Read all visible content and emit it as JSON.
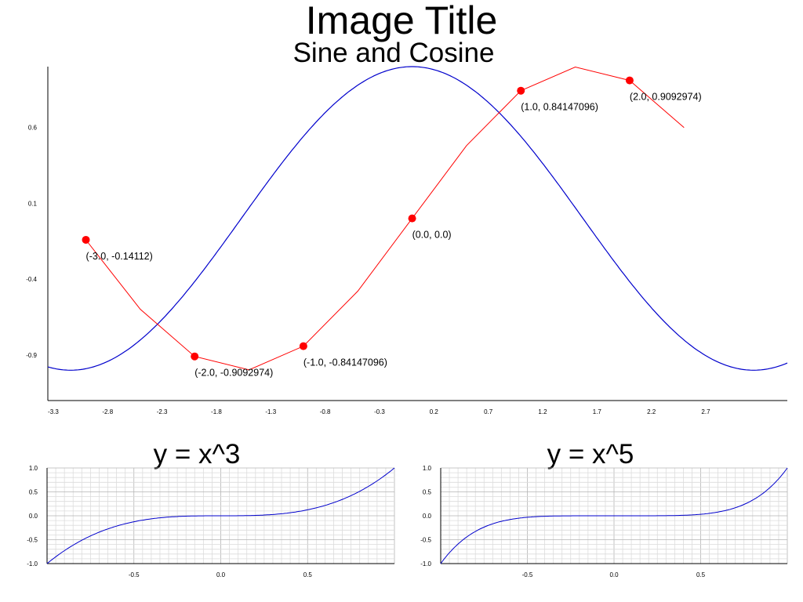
{
  "page": {
    "title": "Image Title"
  },
  "chart_data": [
    {
      "type": "line",
      "title": "Sine and Cosine",
      "xlabel": "",
      "ylabel": "",
      "xlim": [
        -3.35,
        3.45
      ],
      "ylim": [
        -1.2,
        1.0
      ],
      "grid": false,
      "x_ticks": [
        "-3.3",
        "-2.8",
        "-2.3",
        "-1.8",
        "-1.3",
        "-0.8",
        "-0.3",
        "0.2",
        "0.7",
        "1.2",
        "1.7",
        "2.2",
        "2.7"
      ],
      "y_ticks": [
        "0.6",
        "0.1",
        "-0.4",
        "-0.9"
      ],
      "series": [
        {
          "function": "cos(x)",
          "color": "#0000cc",
          "x": [
            -3.35,
            -3.25,
            -3.14,
            -3.0,
            -2.75,
            -2.5,
            -2.25,
            -2.0,
            -1.75,
            -1.5,
            -1.25,
            -1.0,
            -0.75,
            -0.5,
            -0.25,
            0.0,
            0.25,
            0.5,
            0.75,
            1.0,
            1.25,
            1.5,
            1.75,
            2.0,
            2.25,
            2.5,
            2.75,
            3.0,
            3.14,
            3.25,
            3.45
          ],
          "y": [
            -0.98,
            -0.99,
            -1.0,
            -0.99,
            -0.92,
            -0.8,
            -0.63,
            -0.42,
            -0.18,
            0.07,
            0.32,
            0.54,
            0.73,
            0.88,
            0.97,
            1.0,
            0.97,
            0.88,
            0.73,
            0.54,
            0.32,
            0.07,
            -0.18,
            -0.42,
            -0.63,
            -0.8,
            -0.92,
            -0.99,
            -1.0,
            -0.99,
            -0.95
          ]
        },
        {
          "function": "sin(x)",
          "color": "#ff0000",
          "x": [
            -3.0,
            -2.5,
            -2.0,
            -1.5,
            -1.0,
            -0.5,
            0.0,
            0.5,
            1.0,
            1.5,
            2.0,
            2.5
          ],
          "y": [
            -0.14112,
            -0.59847,
            -0.9092974,
            -0.99749,
            -0.84147096,
            -0.47943,
            0.0,
            0.47943,
            0.84147096,
            0.99749,
            0.9092974,
            0.59847
          ]
        }
      ],
      "annotations": [
        {
          "x": -3.0,
          "y": -0.14112,
          "text": "(-3.0, -0.14112)"
        },
        {
          "x": -2.0,
          "y": -0.9092974,
          "text": "(-2.0, -0.9092974)"
        },
        {
          "x": -1.0,
          "y": -0.84147096,
          "text": "(-1.0, -0.84147096)"
        },
        {
          "x": 0.0,
          "y": 0.0,
          "text": "(0.0, 0.0)"
        },
        {
          "x": 1.0,
          "y": 0.84147096,
          "text": "(1.0, 0.84147096)"
        },
        {
          "x": 2.0,
          "y": 0.9092974,
          "text": "(2.0, 0.9092974)"
        }
      ]
    },
    {
      "type": "line",
      "title": "y = x^3",
      "xlabel": "",
      "ylabel": "",
      "function": "x^3",
      "xlim": [
        -1.0,
        1.0
      ],
      "ylim": [
        -1.0,
        1.0
      ],
      "grid": true,
      "color": "#0000cc",
      "x_ticks": [
        "-0.5",
        "0.0",
        "0.5"
      ],
      "y_ticks": [
        "1.0",
        "0.5",
        "0.0",
        "-0.5",
        "-1.0"
      ],
      "x": [
        -1.0,
        -0.9,
        -0.8,
        -0.7,
        -0.6,
        -0.5,
        -0.4,
        -0.3,
        -0.2,
        -0.1,
        0.0,
        0.1,
        0.2,
        0.3,
        0.4,
        0.5,
        0.6,
        0.7,
        0.8,
        0.9,
        1.0
      ],
      "y": [
        -1.0,
        -0.729,
        -0.512,
        -0.343,
        -0.216,
        -0.125,
        -0.064,
        -0.027,
        -0.008,
        -0.001,
        0.0,
        0.001,
        0.008,
        0.027,
        0.064,
        0.125,
        0.216,
        0.343,
        0.512,
        0.729,
        1.0
      ]
    },
    {
      "type": "line",
      "title": "y = x^5",
      "xlabel": "",
      "ylabel": "",
      "function": "x^5",
      "xlim": [
        -1.0,
        1.0
      ],
      "ylim": [
        -1.0,
        1.0
      ],
      "grid": true,
      "color": "#0000cc",
      "x_ticks": [
        "-0.5",
        "0.0",
        "0.5"
      ],
      "y_ticks": [
        "1.0",
        "0.5",
        "0.0",
        "-0.5",
        "-1.0"
      ],
      "x": [
        -1.0,
        -0.9,
        -0.8,
        -0.7,
        -0.6,
        -0.5,
        -0.4,
        -0.3,
        -0.2,
        -0.1,
        0.0,
        0.1,
        0.2,
        0.3,
        0.4,
        0.5,
        0.6,
        0.7,
        0.8,
        0.9,
        1.0
      ],
      "y": [
        -1.0,
        -0.59049,
        -0.32768,
        -0.16807,
        -0.07776,
        -0.03125,
        -0.01024,
        -0.00243,
        -0.00032,
        -1e-05,
        0.0,
        1e-05,
        0.00032,
        0.00243,
        0.01024,
        0.03125,
        0.07776,
        0.16807,
        0.32768,
        0.59049,
        1.0
      ]
    }
  ]
}
